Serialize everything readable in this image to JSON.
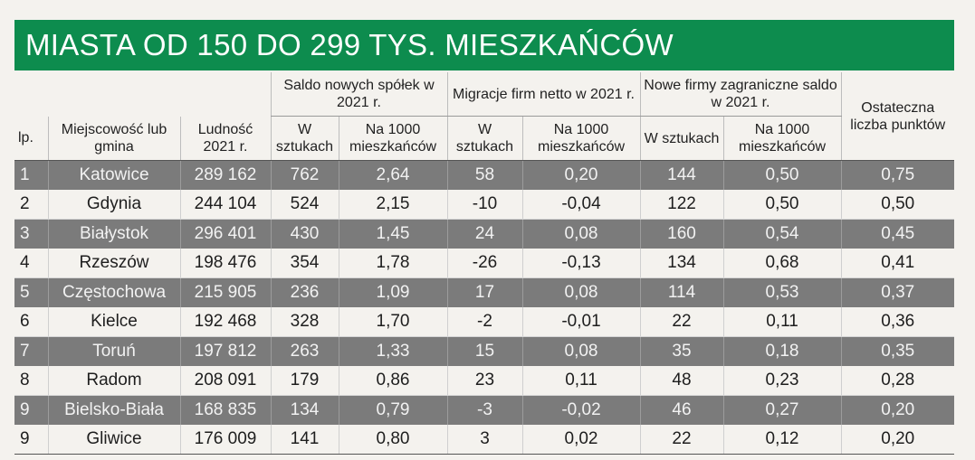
{
  "title": "MIASTA OD 150 DO 299 TYS. MIESZKAŃCÓW",
  "headers": {
    "lp": "lp.",
    "city": "Miejscowość lub gmina",
    "population": "Ludność 2021 r.",
    "group_spolki": "Saldo nowych spółek w 2021 r.",
    "group_migracje": "Migracje firm netto w 2021 r.",
    "group_zagraniczne": "Nowe firmy zagraniczne saldo w 2021 r.",
    "points": "Ostateczna liczba punktów",
    "w_sztukach": "W sztukach",
    "na_1000": "Na 1000 mieszkańców"
  },
  "rows": [
    {
      "lp": "1",
      "city": "Katowice",
      "pop": "289 162",
      "s_w": "762",
      "s_n": "2,64",
      "m_w": "58",
      "m_n": "0,20",
      "z_w": "144",
      "z_n": "0,50",
      "pts": "0,75"
    },
    {
      "lp": "2",
      "city": "Gdynia",
      "pop": "244 104",
      "s_w": "524",
      "s_n": "2,15",
      "m_w": "-10",
      "m_n": "-0,04",
      "z_w": "122",
      "z_n": "0,50",
      "pts": "0,50"
    },
    {
      "lp": "3",
      "city": "Białystok",
      "pop": "296 401",
      "s_w": "430",
      "s_n": "1,45",
      "m_w": "24",
      "m_n": "0,08",
      "z_w": "160",
      "z_n": "0,54",
      "pts": "0,45"
    },
    {
      "lp": "4",
      "city": "Rzeszów",
      "pop": "198 476",
      "s_w": "354",
      "s_n": "1,78",
      "m_w": "-26",
      "m_n": "-0,13",
      "z_w": "134",
      "z_n": "0,68",
      "pts": "0,41"
    },
    {
      "lp": "5",
      "city": "Częstochowa",
      "pop": "215 905",
      "s_w": "236",
      "s_n": "1,09",
      "m_w": "17",
      "m_n": "0,08",
      "z_w": "114",
      "z_n": "0,53",
      "pts": "0,37"
    },
    {
      "lp": "6",
      "city": "Kielce",
      "pop": "192 468",
      "s_w": "328",
      "s_n": "1,70",
      "m_w": "-2",
      "m_n": "-0,01",
      "z_w": "22",
      "z_n": "0,11",
      "pts": "0,36"
    },
    {
      "lp": "7",
      "city": "Toruń",
      "pop": "197 812",
      "s_w": "263",
      "s_n": "1,33",
      "m_w": "15",
      "m_n": "0,08",
      "z_w": "35",
      "z_n": "0,18",
      "pts": "0,35"
    },
    {
      "lp": "8",
      "city": "Radom",
      "pop": "208 091",
      "s_w": "179",
      "s_n": "0,86",
      "m_w": "23",
      "m_n": "0,11",
      "z_w": "48",
      "z_n": "0,23",
      "pts": "0,28"
    },
    {
      "lp": "9",
      "city": "Bielsko-Biała",
      "pop": "168 835",
      "s_w": "134",
      "s_n": "0,79",
      "m_w": "-3",
      "m_n": "-0,02",
      "z_w": "46",
      "z_n": "0,27",
      "pts": "0,20"
    },
    {
      "lp": "9",
      "city": "Gliwice",
      "pop": "176 009",
      "s_w": "141",
      "s_n": "0,80",
      "m_w": "3",
      "m_n": "0,02",
      "z_w": "22",
      "z_n": "0,12",
      "pts": "0,20"
    }
  ]
}
